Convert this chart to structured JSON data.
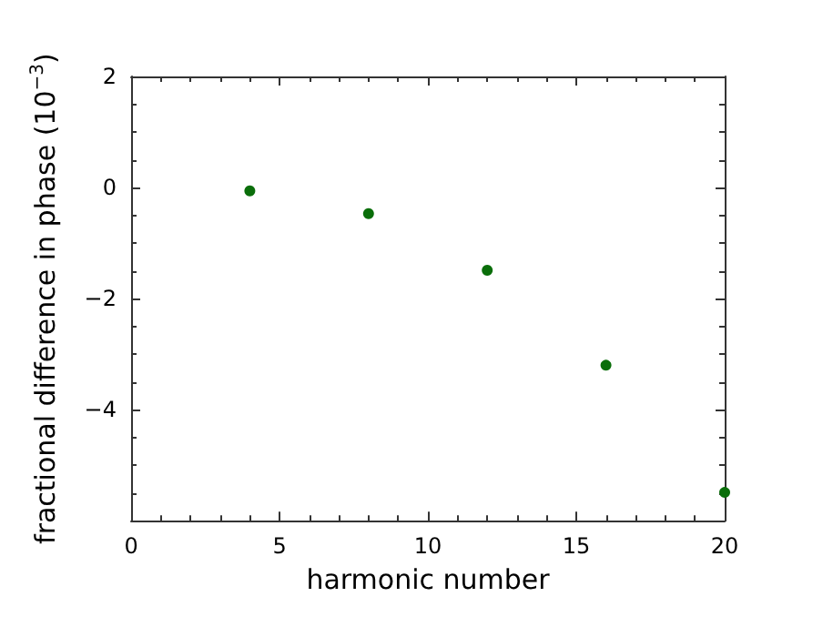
{
  "chart_data": {
    "type": "scatter",
    "xlabel": "harmonic number",
    "ylabel": "fractional difference in phase (10$^{−3}$)",
    "x": [
      4,
      8,
      12,
      16,
      20
    ],
    "series": [
      {
        "color": "#0a6e0a",
        "values": [
          -0.06,
          -0.47,
          -1.49,
          -3.2,
          -5.49
        ]
      }
    ],
    "xlim": [
      0,
      20
    ],
    "xticks": [
      0,
      5,
      10,
      15,
      20
    ],
    "ylim": [
      -6,
      2
    ],
    "yticks": [
      2,
      0,
      -2,
      -4,
      {
        "value": -6,
        "label": null
      }
    ],
    "grid": false,
    "marker": "circle"
  }
}
